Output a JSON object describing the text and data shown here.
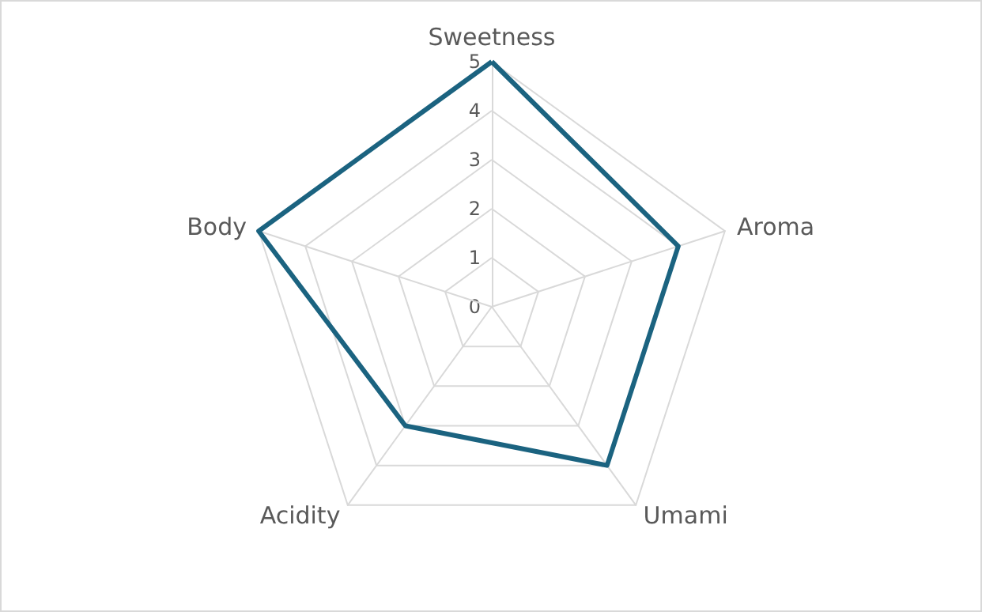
{
  "chart_data": {
    "type": "radar",
    "categories": [
      "Sweetness",
      "Aroma",
      "Umami",
      "Acidity",
      "Body"
    ],
    "series": [
      {
        "color": "#1b6380",
        "values": [
          5,
          4,
          4,
          3,
          5
        ]
      }
    ],
    "ylim": [
      0,
      5
    ],
    "yticks": [
      0,
      1,
      2,
      3,
      4,
      5
    ],
    "marker": "none",
    "line_style": "solid"
  }
}
